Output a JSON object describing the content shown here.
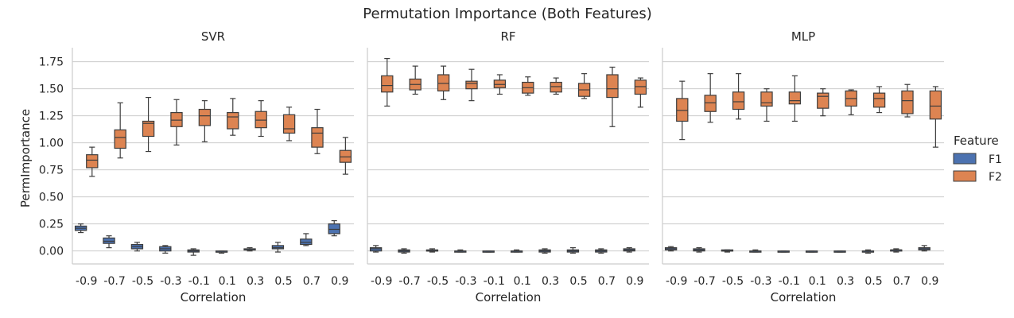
{
  "chart_data": {
    "type": "box",
    "title": "Permutation Importance (Both Features)",
    "xlabel": "Correlation",
    "ylabel": "PermImportance",
    "ylim": [
      -0.12,
      1.88
    ],
    "yticks": [
      "0.00",
      "0.25",
      "0.50",
      "0.75",
      "1.00",
      "1.25",
      "1.50",
      "1.75"
    ],
    "categories": [
      "-0.9",
      "-0.7",
      "-0.5",
      "-0.3",
      "-0.1",
      "0.1",
      "0.3",
      "0.5",
      "0.7",
      "0.9"
    ],
    "grid": "horizontal",
    "legend": {
      "title": "Feature",
      "placement": "right",
      "entries": [
        {
          "name": "F1",
          "color": "#4c72b0"
        },
        {
          "name": "F2",
          "color": "#dd8452"
        }
      ]
    },
    "panels": [
      {
        "title": "SVR",
        "series": [
          {
            "name": "F1",
            "boxes": [
              [
                0.17,
                0.19,
                0.21,
                0.23,
                0.25
              ],
              [
                0.03,
                0.07,
                0.09,
                0.12,
                0.14
              ],
              [
                0.0,
                0.02,
                0.04,
                0.06,
                0.08
              ],
              [
                -0.02,
                0.0,
                0.02,
                0.04,
                0.05
              ],
              [
                -0.04,
                -0.01,
                0.0,
                0.01,
                0.02
              ],
              [
                -0.02,
                -0.01,
                -0.01,
                0.0,
                0.0
              ],
              [
                0.0,
                0.01,
                0.01,
                0.02,
                0.03
              ],
              [
                -0.01,
                0.02,
                0.03,
                0.05,
                0.08
              ],
              [
                0.05,
                0.06,
                0.08,
                0.11,
                0.16
              ],
              [
                0.14,
                0.16,
                0.2,
                0.25,
                0.28
              ]
            ]
          },
          {
            "name": "F2",
            "boxes": [
              [
                0.69,
                0.77,
                0.84,
                0.89,
                0.96
              ],
              [
                0.86,
                0.95,
                1.05,
                1.12,
                1.37
              ],
              [
                0.92,
                1.06,
                1.18,
                1.2,
                1.42
              ],
              [
                0.98,
                1.15,
                1.21,
                1.28,
                1.4
              ],
              [
                1.01,
                1.16,
                1.25,
                1.31,
                1.39
              ],
              [
                1.07,
                1.13,
                1.24,
                1.28,
                1.41
              ],
              [
                1.06,
                1.14,
                1.21,
                1.29,
                1.39
              ],
              [
                1.02,
                1.09,
                1.13,
                1.26,
                1.33
              ],
              [
                0.9,
                0.96,
                1.09,
                1.14,
                1.31
              ],
              [
                0.71,
                0.82,
                0.87,
                0.93,
                1.05
              ]
            ]
          }
        ]
      },
      {
        "title": "RF",
        "series": [
          {
            "name": "F1",
            "boxes": [
              [
                -0.01,
                0.0,
                0.02,
                0.03,
                0.05
              ],
              [
                -0.02,
                -0.01,
                0.0,
                0.01,
                0.02
              ],
              [
                -0.01,
                0.0,
                0.0,
                0.01,
                0.02
              ],
              [
                -0.01,
                -0.01,
                0.0,
                0.0,
                0.01
              ],
              [
                -0.01,
                -0.01,
                -0.01,
                0.0,
                0.0
              ],
              [
                -0.01,
                -0.01,
                0.0,
                0.0,
                0.01
              ],
              [
                -0.02,
                -0.01,
                0.0,
                0.01,
                0.02
              ],
              [
                -0.02,
                -0.01,
                0.0,
                0.01,
                0.03
              ],
              [
                -0.02,
                -0.01,
                0.0,
                0.01,
                0.02
              ],
              [
                -0.01,
                0.0,
                0.01,
                0.02,
                0.03
              ]
            ]
          },
          {
            "name": "F2",
            "boxes": [
              [
                1.34,
                1.47,
                1.53,
                1.62,
                1.78
              ],
              [
                1.45,
                1.49,
                1.54,
                1.59,
                1.71
              ],
              [
                1.4,
                1.48,
                1.55,
                1.63,
                1.71
              ],
              [
                1.39,
                1.5,
                1.55,
                1.57,
                1.68
              ],
              [
                1.45,
                1.51,
                1.54,
                1.58,
                1.63
              ],
              [
                1.44,
                1.46,
                1.51,
                1.56,
                1.61
              ],
              [
                1.45,
                1.47,
                1.52,
                1.56,
                1.6
              ],
              [
                1.41,
                1.43,
                1.49,
                1.55,
                1.64
              ],
              [
                1.15,
                1.42,
                1.5,
                1.63,
                1.7
              ],
              [
                1.33,
                1.45,
                1.52,
                1.58,
                1.6
              ]
            ]
          }
        ]
      },
      {
        "title": "MLP",
        "series": [
          {
            "name": "F1",
            "boxes": [
              [
                0.0,
                0.01,
                0.02,
                0.03,
                0.04
              ],
              [
                -0.01,
                0.0,
                0.01,
                0.02,
                0.03
              ],
              [
                -0.01,
                0.0,
                0.0,
                0.01,
                0.01
              ],
              [
                -0.01,
                -0.01,
                0.0,
                0.0,
                0.01
              ],
              [
                -0.01,
                -0.01,
                -0.01,
                0.0,
                0.0
              ],
              [
                -0.01,
                -0.01,
                -0.01,
                0.0,
                0.0
              ],
              [
                -0.01,
                -0.01,
                -0.01,
                0.0,
                0.0
              ],
              [
                -0.02,
                -0.01,
                0.0,
                0.0,
                0.01
              ],
              [
                -0.01,
                0.0,
                0.01,
                0.01,
                0.02
              ],
              [
                0.0,
                0.01,
                0.02,
                0.03,
                0.05
              ]
            ]
          },
          {
            "name": "F2",
            "boxes": [
              [
                1.03,
                1.2,
                1.3,
                1.41,
                1.57
              ],
              [
                1.19,
                1.29,
                1.37,
                1.44,
                1.64
              ],
              [
                1.22,
                1.31,
                1.38,
                1.47,
                1.64
              ],
              [
                1.2,
                1.34,
                1.37,
                1.47,
                1.5
              ],
              [
                1.2,
                1.36,
                1.39,
                1.47,
                1.62
              ],
              [
                1.25,
                1.32,
                1.43,
                1.46,
                1.5
              ],
              [
                1.26,
                1.34,
                1.41,
                1.48,
                1.49
              ],
              [
                1.28,
                1.33,
                1.41,
                1.46,
                1.52
              ],
              [
                1.24,
                1.27,
                1.39,
                1.48,
                1.54
              ],
              [
                0.96,
                1.22,
                1.34,
                1.48,
                1.52
              ]
            ]
          }
        ]
      }
    ]
  }
}
